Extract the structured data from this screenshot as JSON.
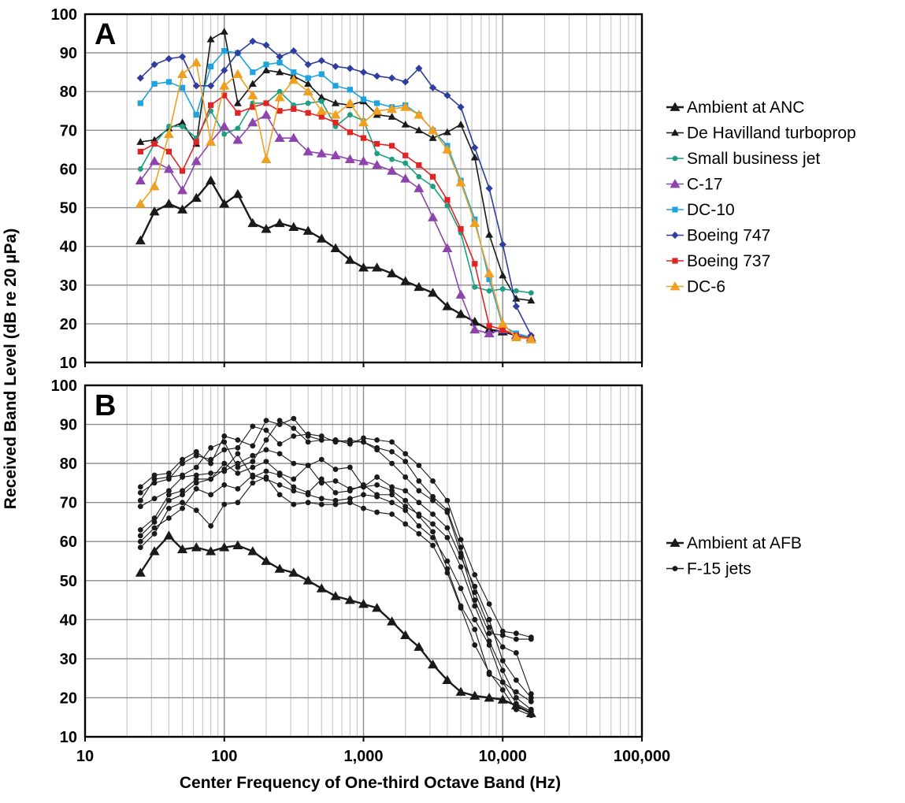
{
  "chart_data": {
    "type": "line",
    "xlabel": "Center Frequency of One-third Octave Band (Hz)",
    "ylabel": "Received Band Level (dB re 20 µPa)",
    "x_scale": "log",
    "xlim": [
      10,
      100000
    ],
    "x_ticks": [
      10,
      100,
      1000,
      10000,
      100000
    ],
    "x_tick_labels": [
      "10",
      "100",
      "1,000",
      "10,000",
      "100,000"
    ],
    "grid": true,
    "legend_position": "right",
    "frequencies": [
      25,
      31.5,
      40,
      50,
      63,
      80,
      100,
      125,
      160,
      200,
      250,
      315,
      400,
      500,
      630,
      800,
      1000,
      1250,
      1600,
      2000,
      2500,
      3150,
      4000,
      5000,
      6300,
      8000,
      10000,
      12500,
      16000
    ],
    "panels": [
      {
        "label": "A",
        "ylim": [
          10,
          100
        ],
        "y_ticks": [
          10,
          20,
          30,
          40,
          50,
          60,
          70,
          80,
          90,
          100
        ],
        "series": [
          {
            "name": "Ambient at ANC",
            "color": "#1a1a1a",
            "marker": "triangle",
            "width": 2.4,
            "values": [
              41.5,
              49,
              51,
              49.5,
              52.5,
              57,
              51,
              53.5,
              46,
              44.5,
              46,
              45,
              44,
              42,
              39.5,
              36.5,
              34.5,
              34.5,
              33,
              31,
              29.5,
              28,
              24.5,
              22.5,
              20.5,
              18.5,
              18,
              17,
              16
            ]
          },
          {
            "name": "De Havilland turboprop",
            "color": "#1a1a1a",
            "marker": "triangle-small",
            "width": 1.6,
            "values": [
              67,
              67.5,
              70.5,
              72,
              66.5,
              93.5,
              95.5,
              77,
              82,
              85.5,
              85,
              84,
              82,
              78.5,
              77,
              76.5,
              77.5,
              74,
              73.5,
              71.5,
              70,
              68,
              69.5,
              71.5,
              63,
              43,
              32.5,
              26.5,
              26
            ]
          },
          {
            "name": "Small business jet",
            "color": "#1e9e82",
            "marker": "circle",
            "width": 1.6,
            "values": [
              60,
              66.5,
              71,
              71,
              68,
              75,
              69,
              70.5,
              77,
              77,
              80,
              76.5,
              77,
              77.5,
              71,
              74,
              72.5,
              64,
              62.5,
              61.5,
              58,
              55.5,
              50.5,
              43.5,
              29.5,
              28.5,
              29,
              28.5,
              28
            ]
          },
          {
            "name": "C-17",
            "color": "#8e44ad",
            "marker": "triangle",
            "width": 1.6,
            "values": [
              57,
              62,
              60,
              54.5,
              62,
              67,
              71,
              67.5,
              72,
              74,
              68,
              68,
              64.5,
              64,
              63.5,
              62.5,
              62,
              61,
              59.5,
              57.5,
              55,
              47.5,
              39.5,
              27.5,
              18.5,
              17.5,
              18.5,
              17,
              16.5
            ]
          },
          {
            "name": "DC-10",
            "color": "#1ca3e0",
            "marker": "square",
            "width": 1.6,
            "values": [
              77,
              82,
              82.5,
              81,
              74,
              86.5,
              90.5,
              90,
              85,
              87,
              87.5,
              85,
              83.5,
              84.5,
              81.5,
              80.5,
              78,
              77,
              76,
              76.5,
              74,
              70,
              66,
              57,
              47,
              31.5,
              19.5,
              17.5,
              16.5
            ]
          },
          {
            "name": "Boeing 747",
            "color": "#2e3d9e",
            "marker": "diamond",
            "width": 1.6,
            "values": [
              83.5,
              87,
              88.5,
              89,
              81.5,
              81.5,
              85.5,
              90,
              93,
              92,
              89,
              90.5,
              87,
              88,
              86.5,
              86,
              85,
              84,
              83.5,
              82.5,
              86,
              81,
              79,
              76,
              65.5,
              55,
              40.5,
              24.5,
              17
            ]
          },
          {
            "name": "Boeing 737",
            "color": "#e02424",
            "marker": "square",
            "width": 1.6,
            "values": [
              64.5,
              66.5,
              64.5,
              59.5,
              67,
              76.5,
              79,
              74.5,
              76,
              77,
              75,
              75.5,
              74.5,
              73.5,
              72,
              69.5,
              68,
              66.5,
              66,
              63.5,
              61,
              58,
              52,
              44.5,
              35.5,
              19.5,
              18.5,
              17,
              16
            ]
          },
          {
            "name": "DC-6",
            "color": "#f0a020",
            "marker": "triangle",
            "width": 1.6,
            "values": [
              51,
              55.5,
              69,
              84.5,
              87.5,
              67,
              81.5,
              84.5,
              79,
              62.5,
              78.5,
              83,
              80,
              75,
              74,
              77,
              72,
              75,
              75.5,
              76,
              74,
              70,
              65,
              56.5,
              46,
              33,
              20,
              16.5,
              16
            ]
          }
        ]
      },
      {
        "label": "B",
        "ylim": [
          10,
          100
        ],
        "y_ticks": [
          10,
          20,
          30,
          40,
          50,
          60,
          70,
          80,
          90,
          100
        ],
        "series": [
          {
            "name": "Ambient at AFB",
            "color": "#1a1a1a",
            "marker": "triangle",
            "width": 2.4,
            "values": [
              52,
              57.5,
              61.5,
              58,
              58.5,
              57.5,
              58.5,
              59,
              57.5,
              55,
              53,
              52,
              50,
              48,
              46,
              45,
              44,
              43,
              39.5,
              36,
              33,
              28.5,
              24.5,
              21.5,
              20.5,
              20,
              19.5,
              18,
              16
            ]
          },
          {
            "name": "F-15 jets",
            "color": "#1a1a1a",
            "marker": "circle",
            "width": 1.1,
            "values": [
              74,
              77,
              77.5,
              81,
              83,
              80,
              87,
              86,
              84.5,
              91,
              90,
              91.5,
              87,
              86,
              86,
              85,
              86.5,
              86,
              85.5,
              82.5,
              79.5,
              75.5,
              70.5,
              60.5,
              51.5,
              44,
              37,
              36.5,
              35.5
            ]
          },
          {
            "name": "",
            "color": "#1a1a1a",
            "marker": "circle",
            "width": 1.1,
            "values": [
              72.5,
              75,
              76,
              80,
              82,
              81,
              83.5,
              84,
              89.5,
              88.5,
              85,
              87,
              87.5,
              87,
              85.5,
              86,
              85.5,
              84,
              83,
              80.5,
              75.5,
              71.5,
              68,
              58.5,
              47,
              38,
              33,
              31.5,
              21
            ]
          },
          {
            "name": "",
            "color": "#1a1a1a",
            "marker": "circle",
            "width": 1.1,
            "values": [
              70.5,
              76,
              76.5,
              77,
              79,
              84,
              85.5,
              79,
              80.5,
              86,
              91,
              89,
              85.5,
              86,
              86,
              85.5,
              85.5,
              83.5,
              80,
              76.5,
              73,
              70.5,
              67.5,
              57,
              45,
              36.5,
              36,
              35,
              35
            ]
          },
          {
            "name": "",
            "color": "#1a1a1a",
            "marker": "circle",
            "width": 1.1,
            "values": [
              69,
              71,
              73,
              76.5,
              77,
              77.5,
              78,
              80,
              82,
              83.5,
              82.5,
              80,
              79.5,
              81,
              78.5,
              79,
              74,
              76.5,
              74,
              73,
              70,
              67,
              63.5,
              56,
              48.5,
              40,
              29.5,
              24.5,
              20
            ]
          },
          {
            "name": "",
            "color": "#1a1a1a",
            "marker": "circle",
            "width": 1.1,
            "values": [
              63,
              66,
              72,
              73,
              76,
              76,
              80,
              77.5,
              79,
              80.5,
              77.5,
              76,
              79.5,
              75,
              75.5,
              73.5,
              74,
              74.5,
              73,
              70.5,
              66.5,
              62.5,
              53,
              43.5,
              37.5,
              26,
              24,
              21.5,
              19
            ]
          },
          {
            "name": "",
            "color": "#1a1a1a",
            "marker": "circle",
            "width": 1.1,
            "values": [
              61.5,
              65,
              70.5,
              72,
              75,
              76,
              78.5,
              82.5,
              76.5,
              78,
              77,
              74,
              72.5,
              76,
              72.5,
              73,
              74.5,
              72,
              72,
              69,
              67,
              64.5,
              61,
              53.5,
              43.5,
              34.5,
              27,
              20,
              17
            ]
          },
          {
            "name": "",
            "color": "#1a1a1a",
            "marker": "circle",
            "width": 1.1,
            "values": [
              60,
              63.5,
              66,
              68.5,
              73.5,
              72,
              74.5,
              73.5,
              77,
              76,
              74.5,
              73,
              72,
              71,
              70.5,
              71,
              72,
              71.5,
              70,
              68,
              64,
              61,
              55,
              48,
              40,
              33.5,
              24,
              18.5,
              16.5
            ]
          },
          {
            "name": "",
            "color": "#1a1a1a",
            "marker": "circle",
            "width": 1.1,
            "values": [
              58.5,
              62,
              68.5,
              70,
              68,
              64,
              69.5,
              70,
              75,
              76.5,
              72,
              69.5,
              70,
              69.5,
              69.5,
              70,
              68.5,
              67.5,
              67,
              64.5,
              62,
              59,
              52,
              43,
              33.5,
              26.5,
              22,
              17,
              15.5
            ]
          }
        ]
      }
    ]
  }
}
